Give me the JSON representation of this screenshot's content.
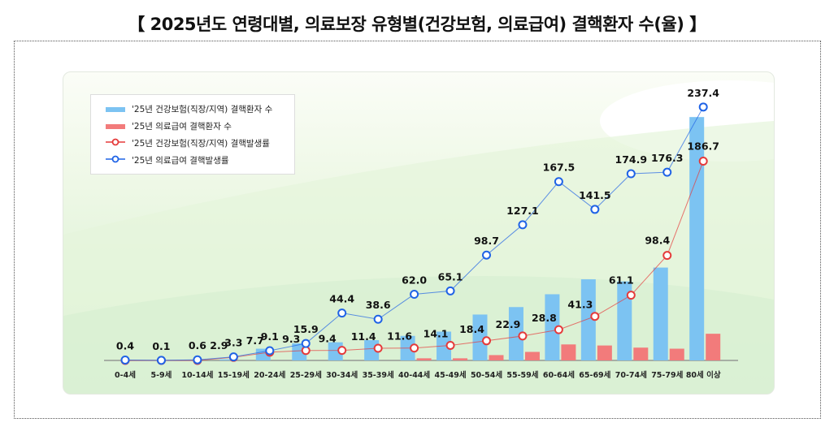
{
  "title": "【 2025년도 연령대별, 의료보장 유형별(건강보험, 의료급여) 결핵환자 수(율) 】",
  "chart_data": {
    "type": "bar+line",
    "title": "",
    "categories": [
      "0-4세",
      "5-9세",
      "10-14세",
      "15-19세",
      "20-24세",
      "25-29세",
      "30-34세",
      "35-39세",
      "40-44세",
      "45-49세",
      "50-54세",
      "55-59세",
      "60-64세",
      "65-69세",
      "70-74세",
      "75-79세",
      "80세 이상"
    ],
    "series": [
      {
        "name": "'25년 건강보험(직장/지역) 결핵환자 수",
        "kind": "bar",
        "color": "#7cc3f2",
        "values": [
          0,
          0,
          0,
          1,
          11,
          16,
          17,
          19,
          23,
          27,
          43,
          50,
          62,
          76,
          74,
          87,
          228
        ],
        "labeled": false
      },
      {
        "name": "'25년 의료급여 결핵환자 수",
        "kind": "bar",
        "color": "#f27b7b",
        "values": [
          0,
          0,
          0,
          0,
          0,
          0,
          0,
          0,
          2,
          2,
          5,
          8,
          15,
          14,
          12,
          11,
          25
        ],
        "labeled": false
      },
      {
        "name": "'25년 건강보험(직장/지역) 결핵발생률",
        "kind": "line",
        "color": "#e53a3a",
        "values": [
          0,
          0,
          0,
          2.9,
          7.7,
          9.3,
          9.4,
          11.4,
          11.6,
          14.1,
          18.4,
          22.9,
          28.8,
          41.3,
          61.1,
          98.4,
          186.7
        ],
        "labels": [
          null,
          null,
          null,
          "2.9",
          "7.7",
          "9.3",
          "9.4",
          "11.4",
          "11.6",
          "14.1",
          "18.4",
          "22.9",
          "28.8",
          "41.3",
          "61.1",
          "98.4",
          "186.7"
        ]
      },
      {
        "name": "'25년 의료급여 결핵발생률",
        "kind": "line",
        "color": "#1f63e6",
        "values": [
          0.4,
          0.1,
          0.6,
          3.3,
          9.1,
          15.9,
          44.4,
          38.6,
          62.0,
          65.1,
          98.7,
          127.1,
          167.5,
          141.5,
          174.9,
          176.3,
          237.4
        ],
        "labels": [
          "0.4",
          "0.1",
          "0.6",
          "3.3",
          "9.1",
          "15.9",
          "44.4",
          "38.6",
          "62.0",
          "65.1",
          "98.7",
          "127.1",
          "167.5",
          "141.5",
          "174.9",
          "176.3",
          "237.4"
        ]
      }
    ],
    "xlabel": "",
    "ylabel": "",
    "grid": false,
    "legend_position": "top-left",
    "axis_visible": false
  }
}
